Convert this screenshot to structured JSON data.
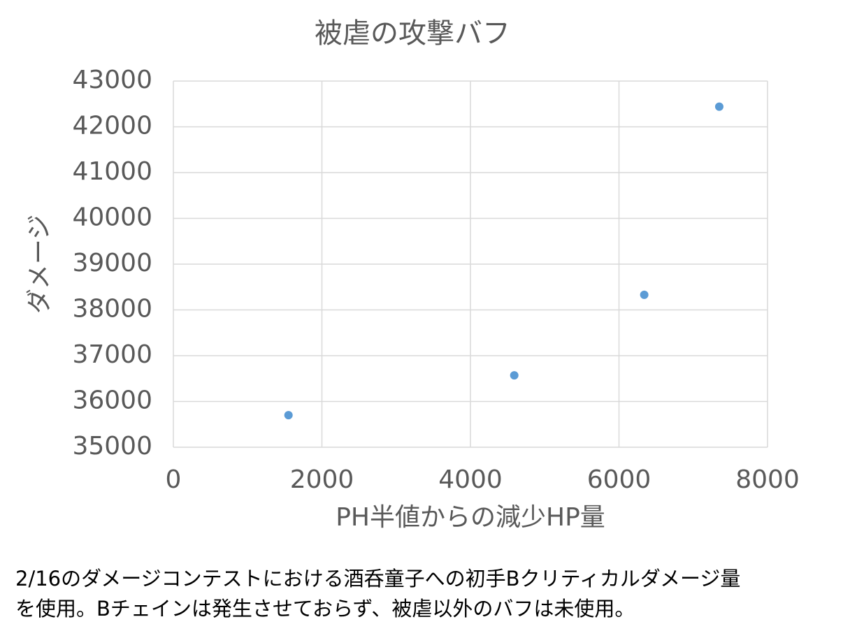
{
  "chart_data": {
    "type": "scatter",
    "title": "被虐の攻撃バフ",
    "x_label": "PH半値からの減少HP量",
    "y_label": "ダメージ",
    "x": [
      1550,
      4590,
      6340,
      7350
    ],
    "values": [
      35700,
      36570,
      38330,
      42440
    ],
    "color": "#5b9bd5",
    "xlim": [
      0,
      8000
    ],
    "xticks": [
      0,
      2000,
      4000,
      6000,
      8000
    ],
    "ylim": [
      35000,
      43000
    ],
    "yticks": [
      35000,
      36000,
      37000,
      38000,
      39000,
      40000,
      41000,
      42000,
      43000
    ],
    "grid": true
  },
  "caption": [
    "2/16のダメージコンテストにおける酒呑童子への初手Bクリティカルダメージ量",
    "を使用。Bチェインは発生させておらず、被虐以外のバフは未使用。"
  ]
}
